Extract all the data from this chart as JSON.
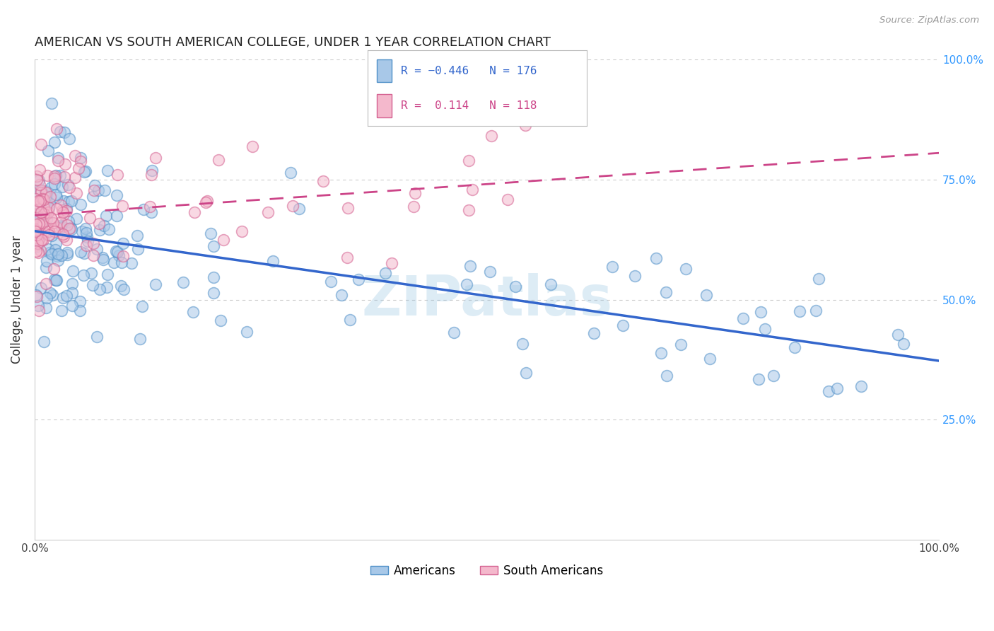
{
  "title": "AMERICAN VS SOUTH AMERICAN COLLEGE, UNDER 1 YEAR CORRELATION CHART",
  "source": "Source: ZipAtlas.com",
  "ylabel": "College, Under 1 year",
  "legend_american": "Americans",
  "legend_south_american": "South Americans",
  "r_american": -0.446,
  "n_american": 176,
  "r_south_american": 0.114,
  "n_south_american": 118,
  "color_american": "#a8c8e8",
  "color_south_american": "#f4b8cc",
  "edge_color_american": "#5090c8",
  "edge_color_south": "#d46090",
  "line_color_american": "#3366cc",
  "line_color_south": "#cc4488",
  "watermark": "ZIPatlas",
  "title_fontsize": 13,
  "axis_label_fontsize": 12,
  "tick_fontsize": 11,
  "right_tick_color": "#3399ff",
  "source_color": "#999999"
}
